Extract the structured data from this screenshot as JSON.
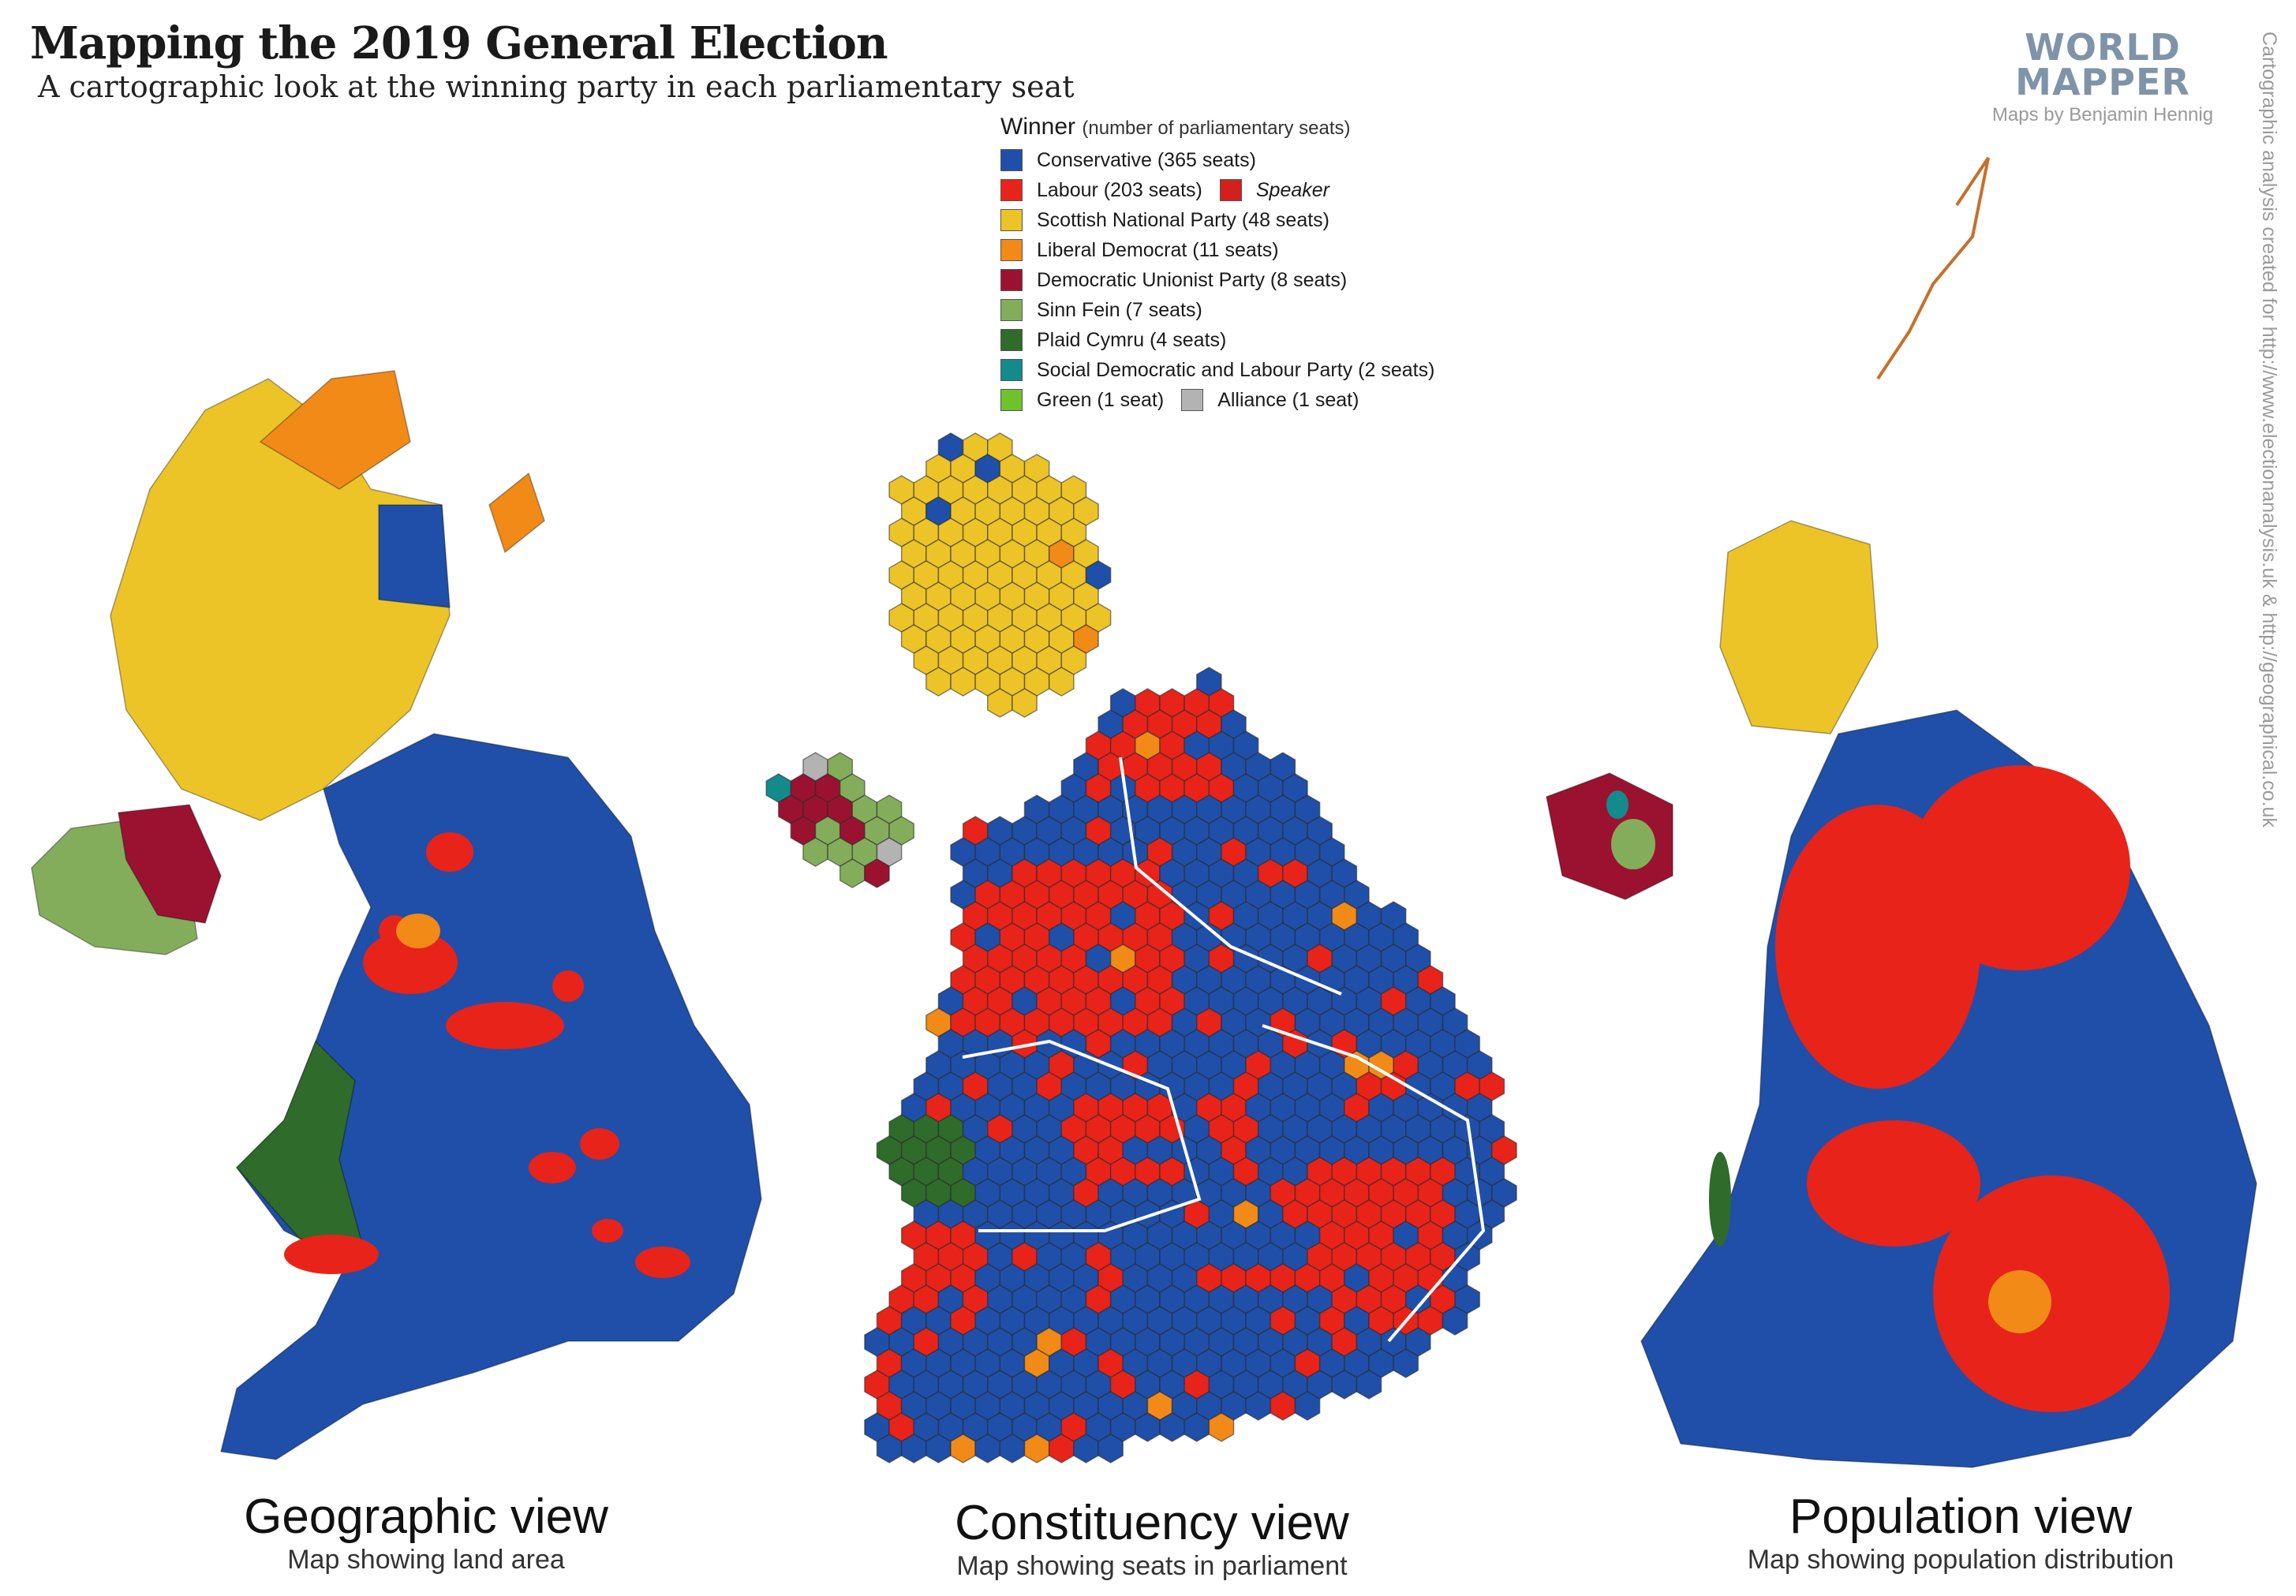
{
  "title": "Mapping the 2019 General Election",
  "subtitle": "A cartographic look at the winning party in each parliamentary seat",
  "brand": {
    "line1": "WORLD",
    "line2": "MAPPER",
    "credit": "Maps by Benjamin Hennig"
  },
  "side_credit": "Cartographic analysis created for http://www.electionanalysis.uk & http://geographical.co.uk",
  "legend": {
    "heading": "Winner",
    "heading_note": "(number of parliamentary seats)",
    "items": [
      {
        "label": "Conservative (365 seats)",
        "color": "#1f4fa8"
      },
      {
        "label": "Labour (203 seats)",
        "color": "#e8231a",
        "extra_label": "Speaker",
        "extra_color": "#d4201c"
      },
      {
        "label": "Scottish National Party (48 seats)",
        "color": "#ecc428"
      },
      {
        "label": "Liberal Democrat (11 seats)",
        "color": "#f28a17"
      },
      {
        "label": "Democratic Unionist Party (8 seats)",
        "color": "#9b1230"
      },
      {
        "label": "Sinn Fein (7 seats)",
        "color": "#84ad5b"
      },
      {
        "label": "Plaid Cymru (4 seats)",
        "color": "#2f6b2a"
      },
      {
        "label": "Social Democratic and Labour Party (2 seats)",
        "color": "#138a8c"
      },
      {
        "label": "Green (1 seat)",
        "color": "#6fc12d",
        "extra_label": "Alliance (1 seat)",
        "extra_color": "#b3b3b3"
      }
    ]
  },
  "maps": [
    {
      "title": "Geographic view",
      "subtitle": "Map showing land area"
    },
    {
      "title": "Constituency view",
      "subtitle": "Map showing seats in parliament"
    },
    {
      "title": "Population view",
      "subtitle": "Map showing population distribution"
    }
  ]
}
